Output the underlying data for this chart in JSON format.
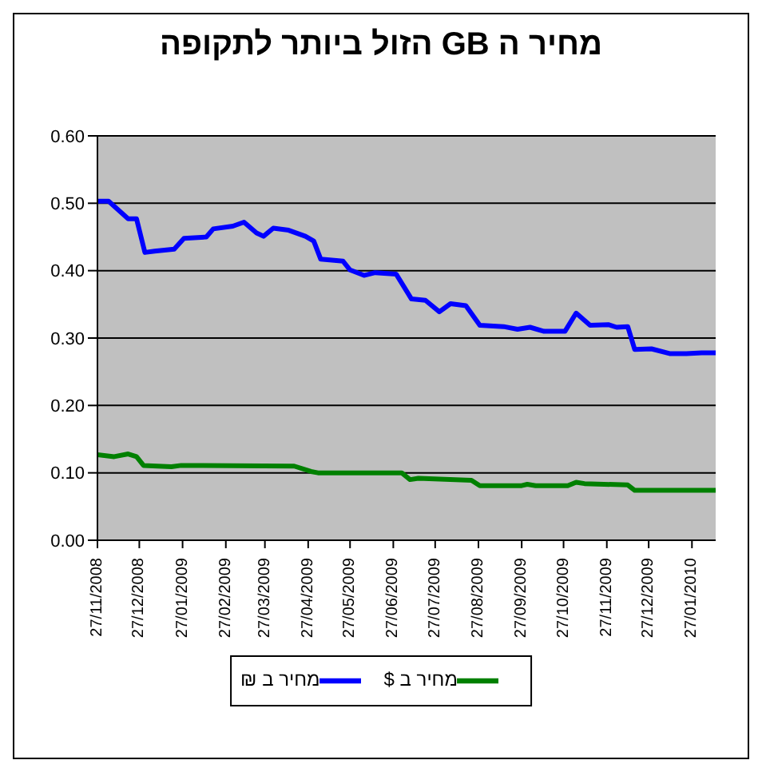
{
  "chart_data": {
    "type": "line",
    "title": "מחיר ה GB הזול ביותר לתקופה",
    "xlim": [
      "2008-11-27",
      "2010-02-13"
    ],
    "xticks": [
      {
        "value": "2008-11-27",
        "label": "27/11/2008"
      },
      {
        "value": "2008-12-27",
        "label": "27/12/2008"
      },
      {
        "value": "2009-01-27",
        "label": "27/01/2009"
      },
      {
        "value": "2009-02-27",
        "label": "27/02/2009"
      },
      {
        "value": "2009-03-27",
        "label": "27/03/2009"
      },
      {
        "value": "2009-04-27",
        "label": "27/04/2009"
      },
      {
        "value": "2009-05-27",
        "label": "27/05/2009"
      },
      {
        "value": "2009-06-27",
        "label": "27/06/2009"
      },
      {
        "value": "2009-07-27",
        "label": "27/07/2009"
      },
      {
        "value": "2009-08-27",
        "label": "27/08/2009"
      },
      {
        "value": "2009-09-27",
        "label": "27/09/2009"
      },
      {
        "value": "2009-10-27",
        "label": "27/10/2009"
      },
      {
        "value": "2009-11-27",
        "label": "27/11/2009"
      },
      {
        "value": "2009-12-27",
        "label": "27/12/2009"
      },
      {
        "value": "2010-01-27",
        "label": "27/01/2010"
      }
    ],
    "ylim": [
      0,
      0.6
    ],
    "yticks": [
      {
        "value": 0,
        "label": "0.00"
      },
      {
        "value": 0.1,
        "label": "0.10"
      },
      {
        "value": 0.2,
        "label": "0.20"
      },
      {
        "value": 0.3,
        "label": "0.30"
      },
      {
        "value": 0.4,
        "label": "0.40"
      },
      {
        "value": 0.5,
        "label": "0.50"
      },
      {
        "value": 0.6,
        "label": "0.60"
      }
    ],
    "grid": "y",
    "legend": "bottom",
    "marker": "none",
    "line_style": "solid",
    "series": [
      {
        "name": "מחיר ב $",
        "color": "#008000",
        "x": [
          "2008-11-27",
          "2008-12-09",
          "2008-12-19",
          "2008-12-25",
          "2008-12-30",
          "2009-01-19",
          "2009-01-26",
          "2009-04-17",
          "2009-04-29",
          "2009-05-04",
          "2009-07-03",
          "2009-07-09",
          "2009-07-15",
          "2009-08-22",
          "2009-08-28",
          "2009-09-27",
          "2009-10-01",
          "2009-10-07",
          "2009-10-30",
          "2009-11-05",
          "2009-11-11",
          "2009-12-12",
          "2009-12-17",
          "2010-02-13"
        ],
        "values": [
          0.127,
          0.124,
          0.128,
          0.124,
          0.111,
          0.109,
          0.111,
          0.11,
          0.102,
          0.1,
          0.1,
          0.09,
          0.092,
          0.089,
          0.081,
          0.081,
          0.083,
          0.081,
          0.081,
          0.086,
          0.084,
          0.082,
          0.074,
          0.074
        ]
      },
      {
        "name": "מחיר ב ₪",
        "color": "#0000ff",
        "x": [
          "2008-11-27",
          "2008-12-05",
          "2008-12-19",
          "2008-12-25",
          "2008-12-31",
          "2009-01-07",
          "2009-01-21",
          "2009-01-28",
          "2009-02-13",
          "2009-02-18",
          "2009-03-04",
          "2009-03-12",
          "2009-03-21",
          "2009-03-26",
          "2009-04-02",
          "2009-04-13",
          "2009-04-25",
          "2009-05-01",
          "2009-05-06",
          "2009-05-22",
          "2009-05-27",
          "2009-06-06",
          "2009-06-14",
          "2009-06-29",
          "2009-07-10",
          "2009-07-20",
          "2009-07-30",
          "2009-08-07",
          "2009-08-18",
          "2009-08-28",
          "2009-09-14",
          "2009-09-24",
          "2009-10-03",
          "2009-10-13",
          "2009-10-28",
          "2009-11-05",
          "2009-11-15",
          "2009-11-28",
          "2009-12-04",
          "2009-12-12",
          "2009-12-17",
          "2009-12-29",
          "2010-01-11",
          "2010-01-23",
          "2010-02-03",
          "2010-02-13"
        ],
        "values": [
          0.503,
          0.503,
          0.477,
          0.477,
          0.427,
          0.429,
          0.432,
          0.448,
          0.45,
          0.462,
          0.466,
          0.472,
          0.456,
          0.451,
          0.463,
          0.46,
          0.451,
          0.444,
          0.417,
          0.414,
          0.401,
          0.393,
          0.397,
          0.395,
          0.358,
          0.356,
          0.339,
          0.351,
          0.348,
          0.319,
          0.317,
          0.313,
          0.316,
          0.31,
          0.31,
          0.337,
          0.319,
          0.32,
          0.316,
          0.317,
          0.283,
          0.284,
          0.277,
          0.277,
          0.278,
          0.278
        ]
      }
    ]
  }
}
